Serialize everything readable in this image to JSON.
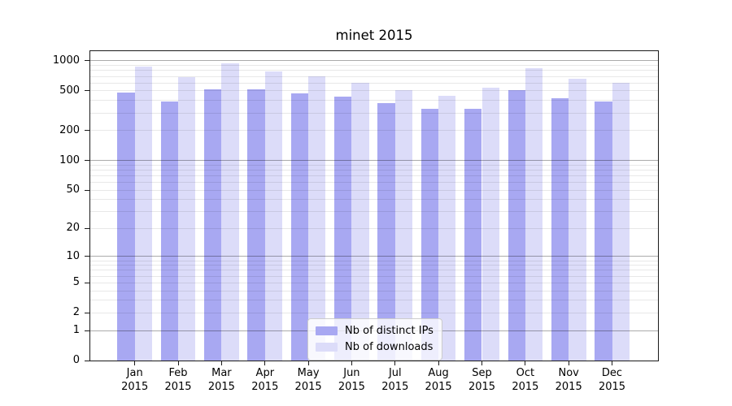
{
  "title": "minet 2015",
  "chart_data": {
    "type": "bar",
    "categories": [
      "Jan 2015",
      "Feb 2015",
      "Mar 2015",
      "Apr 2015",
      "May 2015",
      "Jun 2015",
      "Jul 2015",
      "Aug 2015",
      "Sep 2015",
      "Oct 2015",
      "Nov 2015",
      "Dec 2015"
    ],
    "xticklabel_months": [
      "Jan",
      "Feb",
      "Mar",
      "Apr",
      "May",
      "Jun",
      "Jul",
      "Aug",
      "Sep",
      "Oct",
      "Nov",
      "Dec"
    ],
    "xticklabel_year": "2015",
    "series": [
      {
        "name": "Nb of distinct IPs",
        "color": "#a8a8f2",
        "values": [
          480,
          395,
          515,
          515,
          475,
          440,
          375,
          330,
          330,
          505,
          425,
          390
        ]
      },
      {
        "name": "Nb of downloads",
        "color": "#dcdcf9",
        "values": [
          880,
          690,
          945,
          790,
          705,
          600,
          505,
          445,
          535,
          845,
          660,
          600
        ]
      }
    ],
    "yscale": "log1p",
    "ylim": [
      0,
      1250
    ],
    "yticks": [
      0,
      1,
      2,
      5,
      10,
      20,
      50,
      100,
      200,
      500,
      1000
    ],
    "grid": {
      "major_values": [
        1,
        10,
        100,
        1000
      ],
      "minor_values": [
        2,
        3,
        4,
        5,
        6,
        7,
        8,
        9,
        20,
        30,
        40,
        50,
        60,
        70,
        80,
        90,
        200,
        300,
        400,
        500,
        600,
        700,
        800,
        900
      ],
      "major_color": "rgba(0,0,0,0.33)",
      "minor_color": "rgba(0,0,0,0.09)"
    },
    "legend_position": "lower center",
    "legend_entries": [
      "Nb of distinct IPs",
      "Nb of downloads"
    ]
  },
  "colors": {
    "background": "#ffffff",
    "spine": "#1a1a1a",
    "bar_ips": "#a8a8f2",
    "bar_downloads": "#dcdcf9",
    "legend_border": "#cccccc"
  }
}
